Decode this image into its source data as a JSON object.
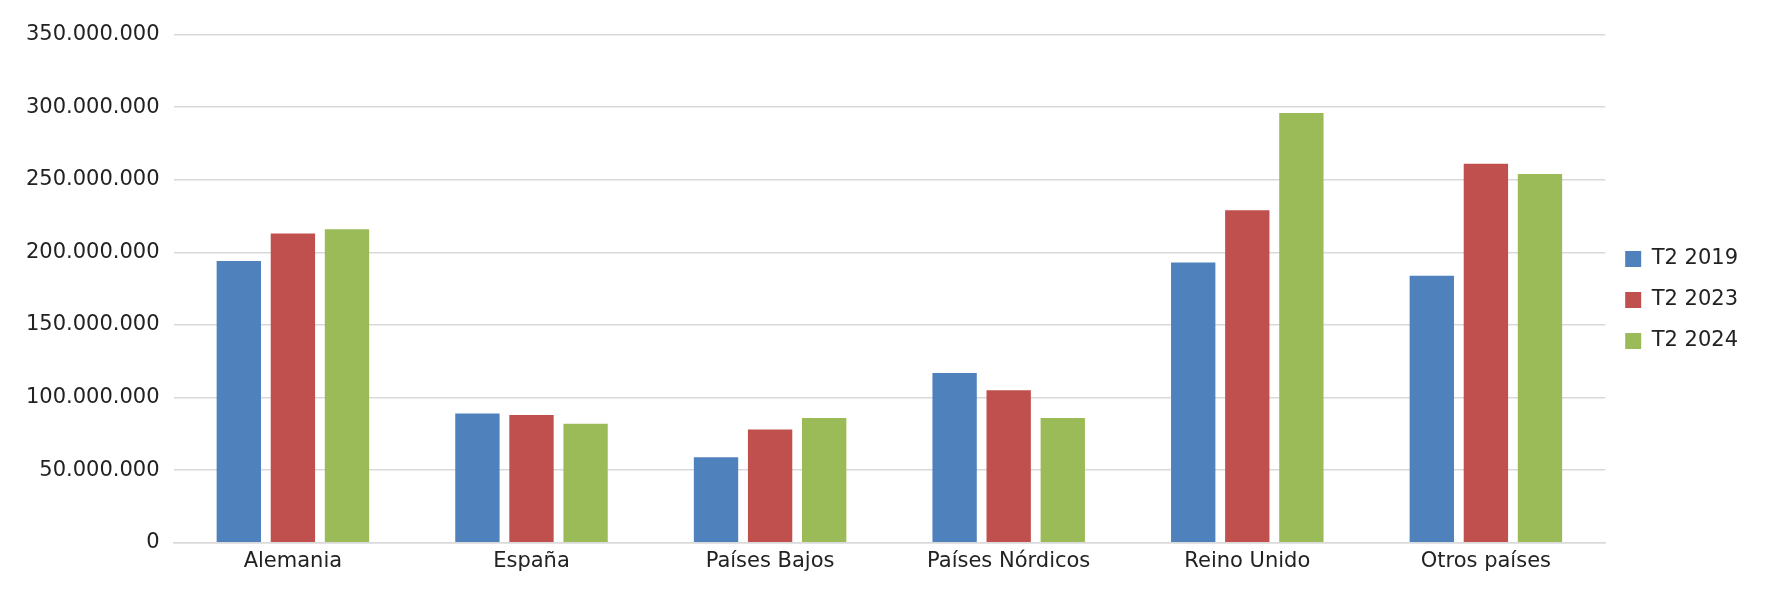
{
  "chart_data": {
    "type": "bar",
    "categories": [
      "Alemania",
      "España",
      "Países Bajos",
      "Países Nórdicos",
      "Reino Unido",
      "Otros países"
    ],
    "series": [
      {
        "name": "T2 2019",
        "color": "#4f81bd",
        "values": [
          194000000,
          89000000,
          59000000,
          117000000,
          193000000,
          184000000
        ]
      },
      {
        "name": "T2 2023",
        "color": "#c0504d",
        "values": [
          213000000,
          88000000,
          78000000,
          105000000,
          229000000,
          261000000
        ]
      },
      {
        "name": "T2 2024",
        "color": "#9bbb59",
        "values": [
          216000000,
          82000000,
          86000000,
          86000000,
          296000000,
          254000000
        ]
      }
    ],
    "ylim": [
      0,
      350000000
    ],
    "yticks": [
      {
        "value": 0,
        "label": "0"
      },
      {
        "value": 50000000,
        "label": "50.000.000"
      },
      {
        "value": 100000000,
        "label": "100.000.000"
      },
      {
        "value": 150000000,
        "label": "150.000.000"
      },
      {
        "value": 200000000,
        "label": "200.000.000"
      },
      {
        "value": 250000000,
        "label": "250.000.000"
      },
      {
        "value": 300000000,
        "label": "300.000.000"
      },
      {
        "value": 350000000,
        "label": "350.000.000"
      }
    ],
    "grid": "y",
    "legend": "right"
  }
}
